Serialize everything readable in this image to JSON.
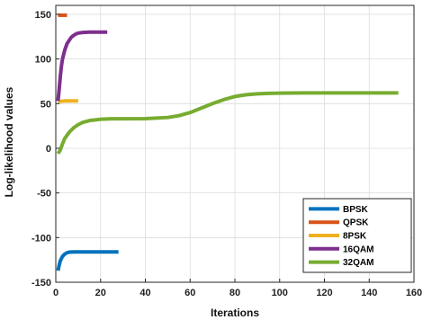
{
  "chart_data": {
    "type": "line",
    "xlabel": "Iterations",
    "ylabel": "Log-likelihood values",
    "xlim": [
      0,
      160
    ],
    "ylim": [
      -150,
      160
    ],
    "xticks": [
      0,
      20,
      40,
      60,
      80,
      100,
      120,
      140,
      160
    ],
    "yticks": [
      -150,
      -100,
      -50,
      0,
      50,
      100,
      150
    ],
    "grid": true,
    "legend_position": "bottom-right",
    "series": [
      {
        "name": "BPSK",
        "color": "#0072BD",
        "x": [
          1,
          1.5,
          2,
          3,
          4,
          5,
          6,
          8,
          10,
          15,
          20,
          25,
          28
        ],
        "y": [
          -137,
          -131,
          -126,
          -121,
          -118.5,
          -117,
          -116.3,
          -116,
          -116,
          -116,
          -116,
          -116,
          -116
        ]
      },
      {
        "name": "QPSK",
        "color": "#D95319",
        "x": [
          1,
          2,
          3,
          4,
          5
        ],
        "y": [
          149,
          149,
          149,
          149,
          149
        ]
      },
      {
        "name": "8PSK",
        "color": "#EDB120",
        "x": [
          1,
          2,
          4,
          6,
          8,
          10
        ],
        "y": [
          52,
          52.5,
          53,
          53,
          53,
          53
        ]
      },
      {
        "name": "16QAM",
        "color": "#7E2F8E",
        "x": [
          1,
          1.5,
          2,
          2.5,
          3,
          4,
          5,
          6,
          7,
          8,
          9,
          10,
          12,
          15,
          20,
          23
        ],
        "y": [
          53,
          66,
          80,
          92,
          100,
          110,
          117,
          121,
          124.5,
          126.5,
          128,
          129,
          129.7,
          130,
          130,
          130
        ]
      },
      {
        "name": "32QAM",
        "color": "#77AC30",
        "x": [
          1,
          2,
          3,
          4,
          6,
          8,
          10,
          12,
          15,
          20,
          25,
          30,
          40,
          50,
          55,
          60,
          65,
          70,
          75,
          80,
          85,
          90,
          95,
          100,
          110,
          120,
          130,
          140,
          150,
          153
        ],
        "y": [
          -6,
          -2,
          5,
          11,
          18,
          23,
          26.5,
          29,
          31,
          32.5,
          33,
          33,
          33.2,
          34.5,
          36.5,
          40,
          45,
          50,
          54.5,
          58,
          60,
          61,
          61.5,
          61.7,
          62,
          62,
          62,
          62,
          62,
          62
        ]
      }
    ]
  }
}
